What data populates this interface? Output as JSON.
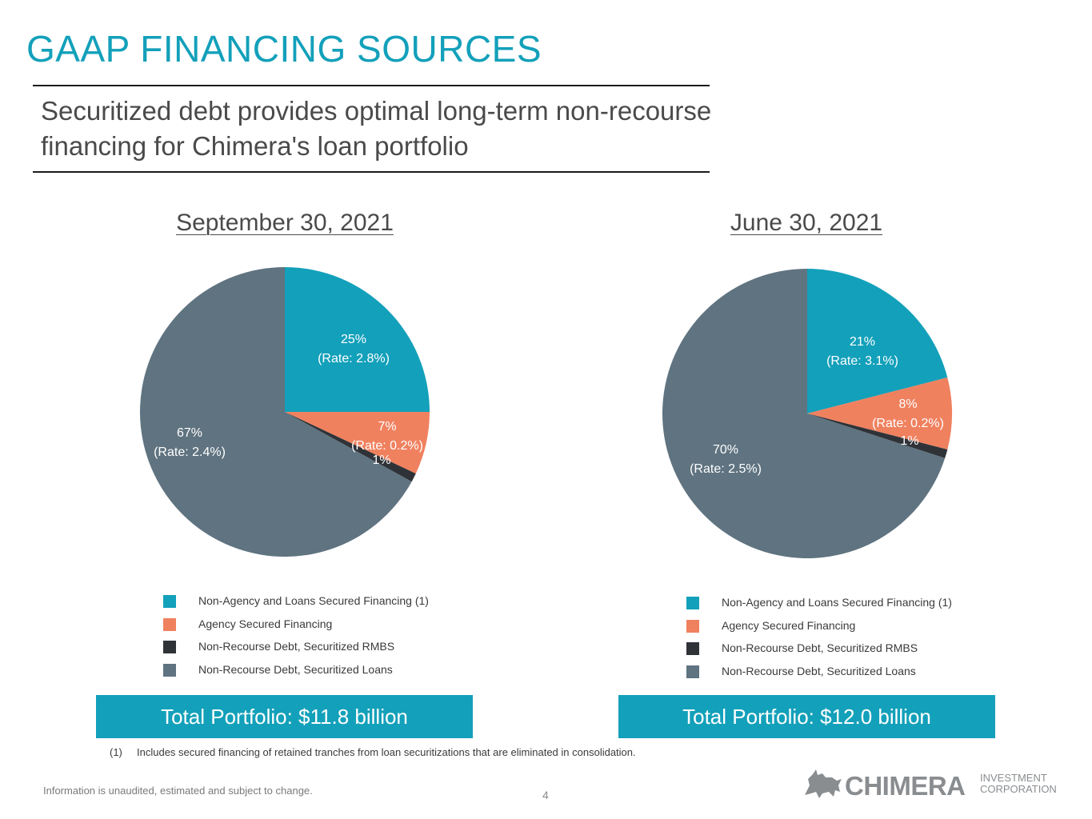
{
  "page": {
    "title": "GAAP FINANCING SOURCES",
    "subtitle_line1": "Securitized debt provides optimal long-term non-recourse",
    "subtitle_line2": "financing for Chimera's loan portfolio",
    "footnote_num": "(1)",
    "footnote_text": "Includes secured financing of retained tranches from loan securitizations that are eliminated in consolidation.",
    "disclaimer": "Information is unaudited, estimated and subject to change.",
    "page_number": "4"
  },
  "logo": {
    "name": "CHIMERA",
    "sub_line1": "INVESTMENT",
    "sub_line2": "CORPORATION",
    "mark_icon": "chimera-creature-icon"
  },
  "colors": {
    "title": "#13a0ba",
    "non_agency": "#13a0ba",
    "agency": "#f0815f",
    "rmbs": "#2f3338",
    "loans": "#5f7380",
    "total_box": "#13a0ba"
  },
  "chart_data": [
    {
      "type": "pie",
      "title": "September 30, 2021",
      "categories": [
        "Non-Agency and Loans Secured Financing (1)",
        "Agency Secured Financing",
        "Non-Recourse Debt, Securitized RMBS",
        "Non-Recourse Debt, Securitized Loans"
      ],
      "values": [
        25,
        7,
        1,
        67
      ],
      "data_labels": [
        {
          "pct": "25%",
          "rate": "(Rate: 2.8%)"
        },
        {
          "pct": "7%",
          "rate": "(Rate: 0.2%)"
        },
        {
          "pct": "1%",
          "rate": ""
        },
        {
          "pct": "67%",
          "rate": "(Rate: 2.4%)"
        }
      ],
      "legend_placement": "bottom",
      "total_label": "Total Portfolio: $11.8 billion"
    },
    {
      "type": "pie",
      "title": "June 30, 2021",
      "categories": [
        "Non-Agency and Loans Secured Financing (1)",
        "Agency Secured Financing",
        "Non-Recourse Debt, Securitized RMBS",
        "Non-Recourse Debt, Securitized Loans"
      ],
      "values": [
        21,
        8,
        1,
        70
      ],
      "data_labels": [
        {
          "pct": "21%",
          "rate": "(Rate: 3.1%)"
        },
        {
          "pct": "8%",
          "rate": "(Rate: 0.2%)"
        },
        {
          "pct": "1%",
          "rate": ""
        },
        {
          "pct": "70%",
          "rate": "(Rate: 2.5%)"
        }
      ],
      "legend_placement": "bottom",
      "total_label": "Total Portfolio: $12.0 billion"
    }
  ]
}
